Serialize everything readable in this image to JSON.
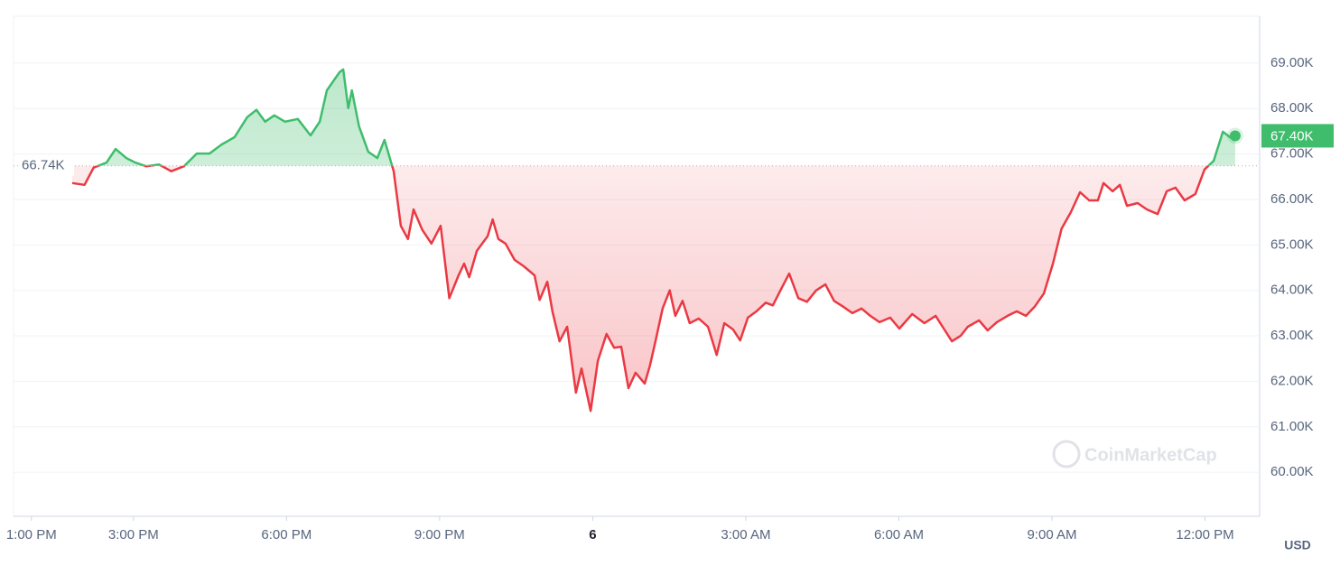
{
  "chart_data": {
    "type": "line",
    "x": [
      13.8,
      14.04,
      14.22,
      14.47,
      14.65,
      14.86,
      15.04,
      15.25,
      15.5,
      15.74,
      15.99,
      16.24,
      16.49,
      16.73,
      16.98,
      17.23,
      17.41,
      17.58,
      17.76,
      17.97,
      18.22,
      18.47,
      18.65,
      18.79,
      19.04,
      19.11,
      19.21,
      19.28,
      19.42,
      19.6,
      19.78,
      19.92,
      20.1,
      20.24,
      20.38,
      20.49,
      20.66,
      20.84,
      21.02,
      21.19,
      21.37,
      21.48,
      21.58,
      21.73,
      21.94,
      22.04,
      22.15,
      22.29,
      22.47,
      22.65,
      22.86,
      22.96,
      23.11,
      23.21,
      23.35,
      23.5,
      23.67,
      23.78,
      23.96,
      24.1,
      24.27,
      24.42,
      24.56,
      24.7,
      24.84,
      25.02,
      25.12,
      25.23,
      25.37,
      25.51,
      25.62,
      25.76,
      25.9,
      26.08,
      26.26,
      26.43,
      26.58,
      26.75,
      26.89,
      27.04,
      27.21,
      27.39,
      27.53,
      27.71,
      27.85,
      28.03,
      28.2,
      28.38,
      28.56,
      28.73,
      28.91,
      29.09,
      29.27,
      29.44,
      29.62,
      29.83,
      30.01,
      30.26,
      30.5,
      30.72,
      30.89,
      31.04,
      31.21,
      31.35,
      31.57,
      31.74,
      31.92,
      32.13,
      32.31,
      32.49,
      32.66,
      32.84,
      33.02,
      33.19,
      33.37,
      33.55,
      33.73,
      33.9,
      34.01,
      34.19,
      34.33,
      34.47,
      34.68,
      34.86,
      35.07,
      35.25,
      35.42,
      35.6,
      35.81,
      35.99,
      36.17,
      36.35,
      36.49,
      36.59
    ],
    "series": [
      {
        "name": "Price",
        "values": [
          66.36,
          66.32,
          66.7,
          66.81,
          67.11,
          66.91,
          66.81,
          66.73,
          66.77,
          66.62,
          66.73,
          67.01,
          67.01,
          67.21,
          67.37,
          67.81,
          67.97,
          67.71,
          67.85,
          67.71,
          67.77,
          67.41,
          67.71,
          68.4,
          68.8,
          68.86,
          68.01,
          68.4,
          67.61,
          67.05,
          66.91,
          67.31,
          66.62,
          65.42,
          65.13,
          65.78,
          65.33,
          65.03,
          65.42,
          63.83,
          64.33,
          64.59,
          64.29,
          64.87,
          65.19,
          65.56,
          65.13,
          65.03,
          64.67,
          64.53,
          64.33,
          63.79,
          64.19,
          63.54,
          62.88,
          63.2,
          61.75,
          62.28,
          61.35,
          62.45,
          63.04,
          62.74,
          62.76,
          61.85,
          62.19,
          61.95,
          62.34,
          62.88,
          63.6,
          64.0,
          63.44,
          63.77,
          63.28,
          63.38,
          63.2,
          62.58,
          63.28,
          63.14,
          62.9,
          63.4,
          63.54,
          63.73,
          63.67,
          64.07,
          64.37,
          63.83,
          63.75,
          64.0,
          64.13,
          63.77,
          63.64,
          63.5,
          63.6,
          63.44,
          63.3,
          63.4,
          63.16,
          63.48,
          63.28,
          63.44,
          63.14,
          62.88,
          63.0,
          63.2,
          63.34,
          63.12,
          63.3,
          63.44,
          63.54,
          63.44,
          63.64,
          63.93,
          64.59,
          65.36,
          65.72,
          66.16,
          65.98,
          65.98,
          66.36,
          66.18,
          66.32,
          65.86,
          65.92,
          65.78,
          65.68,
          66.18,
          66.26,
          65.98,
          66.12,
          66.66,
          66.85,
          67.49,
          67.37,
          67.4
        ]
      }
    ],
    "up_color": "#3fbd6c",
    "down_color": "#ea3943",
    "reference": {
      "value": 66.74,
      "label": "66.74K"
    },
    "last_price": {
      "value": 67.4,
      "label": "67.40K"
    },
    "xlim": [
      12.65,
      37.07
    ],
    "xticks": [
      {
        "value": 13,
        "label": "1:00 PM"
      },
      {
        "value": 15,
        "label": "3:00 PM"
      },
      {
        "value": 18,
        "label": "6:00 PM"
      },
      {
        "value": 21,
        "label": "9:00 PM"
      },
      {
        "value": 24,
        "label": "6"
      },
      {
        "value": 27,
        "label": "3:00 AM"
      },
      {
        "value": 30,
        "label": "6:00 AM"
      },
      {
        "value": 33,
        "label": "9:00 AM"
      },
      {
        "value": 36,
        "label": "12:00 PM"
      }
    ],
    "ylim": [
      59.03,
      70.03
    ],
    "yticks": [
      {
        "value": 60,
        "label": "60.00K"
      },
      {
        "value": 61,
        "label": "61.00K"
      },
      {
        "value": 62,
        "label": "62.00K"
      },
      {
        "value": 63,
        "label": "63.00K"
      },
      {
        "value": 64,
        "label": "64.00K"
      },
      {
        "value": 65,
        "label": "65.00K"
      },
      {
        "value": 66,
        "label": "66.00K"
      },
      {
        "value": 67,
        "label": "67.00K"
      },
      {
        "value": 68,
        "label": "68.00K"
      },
      {
        "value": 69,
        "label": "69.00K"
      }
    ],
    "grid": true,
    "currency": "USD",
    "watermark": "CoinMarketCap"
  }
}
